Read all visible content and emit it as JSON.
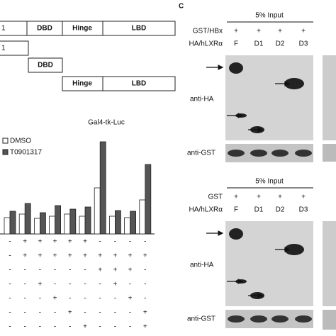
{
  "panel_a": {
    "rows": [
      [
        "1",
        "DBD",
        "Hinge",
        "LBD"
      ],
      [
        "1"
      ],
      [
        "DBD"
      ],
      [
        "Hinge",
        "LBD"
      ]
    ]
  },
  "panel_b": {
    "chart_data": {
      "type": "bar",
      "title": "Gal4-tk-Luc",
      "series": [
        {
          "name": "DMSO",
          "color": "#ffffff",
          "values": [
            2.3,
            2.8,
            2.2,
            2.5,
            2.8,
            2.5,
            6.5,
            2.5,
            2.3,
            4.8
          ]
        },
        {
          "name": "T0901317",
          "color": "#555555",
          "values": [
            3.2,
            4.3,
            3.0,
            4.0,
            3.5,
            3.8,
            13,
            3.3,
            3.2,
            9.8
          ]
        }
      ],
      "ylim": [
        0,
        14
      ]
    },
    "conditions": [
      [
        "-",
        "+",
        "+",
        "+",
        "+",
        "+",
        "-",
        "-",
        "-",
        "-"
      ],
      [
        "-",
        "+",
        "+",
        "+",
        "+",
        "+",
        "+",
        "+",
        "+",
        "+"
      ],
      [
        "-",
        "-",
        "-",
        "-",
        "-",
        "-",
        "+",
        "+",
        "+",
        "-"
      ],
      [
        "-",
        "-",
        "+",
        "-",
        "-",
        "-",
        "-",
        "+",
        "-",
        "-"
      ],
      [
        "-",
        "-",
        "-",
        "+",
        "-",
        "-",
        "-",
        "-",
        "+",
        "-"
      ],
      [
        "-",
        "-",
        "-",
        "-",
        "+",
        "-",
        "-",
        "-",
        "-",
        "+"
      ],
      [
        "-",
        "-",
        "-",
        "-",
        "-",
        "+",
        "-",
        "-",
        "-",
        "+"
      ]
    ]
  },
  "panel_c": {
    "label": "C",
    "top": {
      "input": "5% Input",
      "row1_label": "GST/HBx",
      "row1": [
        "+",
        "+",
        "+",
        "+"
      ],
      "row2_label": "HA/hLXRα",
      "row2": [
        "F",
        "D1",
        "D2",
        "D3"
      ],
      "blot1": "anti-HA",
      "blot2": "anti-GST"
    },
    "bottom": {
      "input": "5% Input",
      "row1_label": "GST",
      "row1": [
        "+",
        "+",
        "+",
        "+"
      ],
      "row2_label": "HA/hLXRα",
      "row2": [
        "F",
        "D1",
        "D2",
        "D3"
      ],
      "blot1": "anti-HA",
      "blot2": "anti-GST"
    }
  }
}
